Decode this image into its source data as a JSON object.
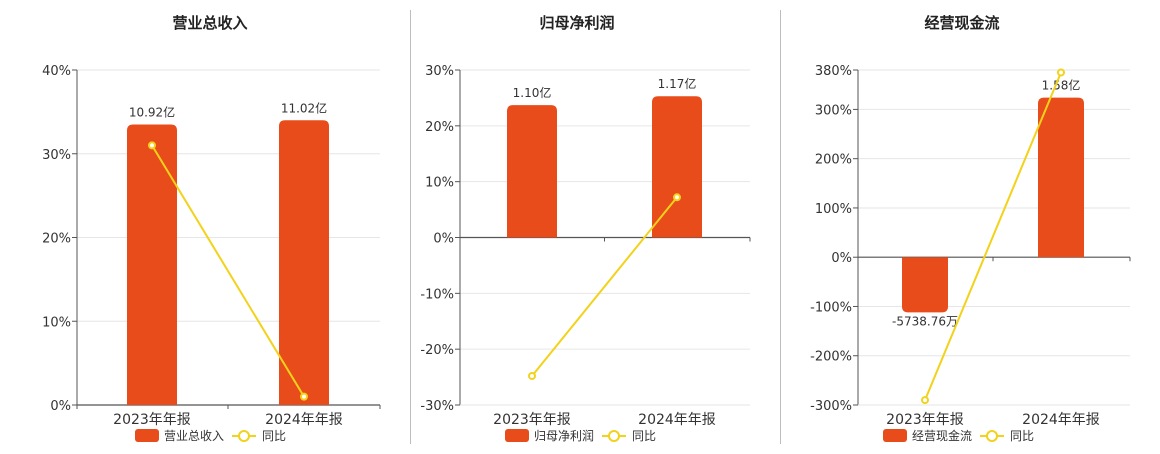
{
  "colors": {
    "bar": "#e84c1a",
    "line": "#f2d21a",
    "axis": "#555555",
    "grid": "#e6e6e6",
    "text": "#333333"
  },
  "legend": {
    "line_label": "同比"
  },
  "chart_data": [
    {
      "type": "bar",
      "title": "营业总收入",
      "categories": [
        "2023年年报",
        "2024年年报"
      ],
      "series": [
        {
          "name": "营业总收入",
          "type": "bar",
          "value_labels": [
            "10.92亿",
            "11.02亿"
          ]
        },
        {
          "name": "同比",
          "type": "line",
          "values": [
            31,
            1
          ]
        }
      ],
      "bar_heights_pct": [
        33.5,
        34
      ],
      "ylim": [
        0,
        40
      ],
      "yticks": [
        0,
        10,
        20,
        30,
        40
      ],
      "ytick_labels": [
        "0%",
        "10%",
        "20%",
        "30%",
        "40%"
      ],
      "legend_position": "bottom"
    },
    {
      "type": "bar",
      "title": "归母净利润",
      "categories": [
        "2023年年报",
        "2024年年报"
      ],
      "series": [
        {
          "name": "归母净利润",
          "type": "bar",
          "value_labels": [
            "1.10亿",
            "1.17亿"
          ]
        },
        {
          "name": "同比",
          "type": "line",
          "values": [
            -24.8,
            7.2
          ]
        }
      ],
      "bar_heights_pct": [
        23.7,
        25.3
      ],
      "ylim": [
        -30,
        30
      ],
      "yticks": [
        -30,
        -20,
        -10,
        0,
        10,
        20,
        30
      ],
      "ytick_labels": [
        "-30%",
        "-20%",
        "-10%",
        "0%",
        "10%",
        "20%",
        "30%"
      ],
      "legend_position": "bottom"
    },
    {
      "type": "bar",
      "title": "经营现金流",
      "categories": [
        "2023年年报",
        "2024年年报"
      ],
      "series": [
        {
          "name": "经营现金流",
          "type": "bar",
          "value_labels": [
            "-5738.76万",
            "1.58亿"
          ]
        },
        {
          "name": "同比",
          "type": "line",
          "values": [
            -290,
            375
          ]
        }
      ],
      "bar_heights_pct": [
        -112,
        324
      ],
      "ylim": [
        -300,
        380
      ],
      "yticks": [
        -300,
        -200,
        -100,
        0,
        100,
        200,
        300,
        380
      ],
      "ytick_labels": [
        "-300%",
        "-200%",
        "-100%",
        "0%",
        "100%",
        "200%",
        "300%",
        "380%"
      ],
      "legend_position": "bottom"
    }
  ]
}
